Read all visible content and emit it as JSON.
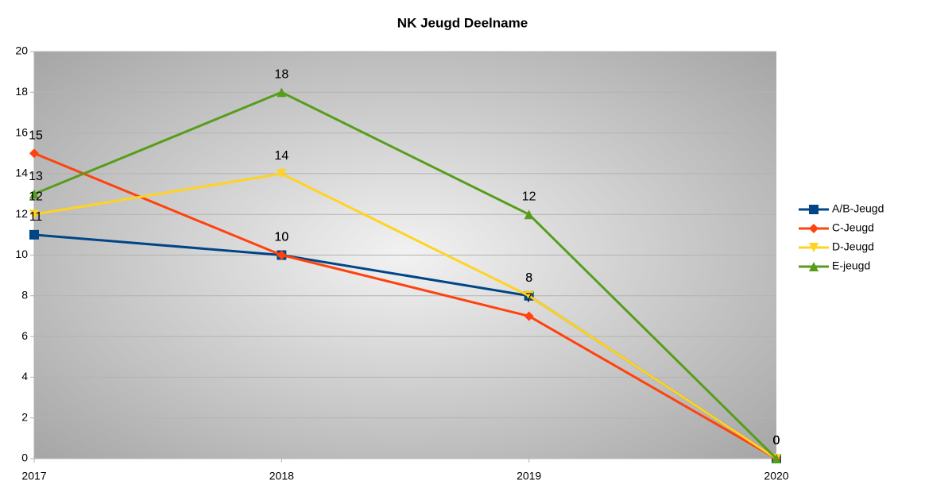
{
  "chart_data": {
    "type": "line",
    "title": "NK Jeugd Deelname",
    "categories": [
      "2017",
      "2018",
      "2019",
      "2020"
    ],
    "series": [
      {
        "name": "A/B-Jeugd",
        "color": "#004586",
        "marker": "square",
        "values": [
          11,
          10,
          8,
          0
        ]
      },
      {
        "name": "C-Jeugd",
        "color": "#ff420e",
        "marker": "diamond",
        "values": [
          15,
          10,
          7,
          0
        ]
      },
      {
        "name": "D-Jeugd",
        "color": "#ffd320",
        "marker": "triangle-down",
        "values": [
          12,
          14,
          8,
          0
        ]
      },
      {
        "name": "E-jeugd",
        "color": "#579d1c",
        "marker": "triangle-up",
        "values": [
          13,
          18,
          12,
          0
        ]
      }
    ],
    "ylim": [
      0,
      20
    ],
    "yticks": [
      0,
      2,
      4,
      6,
      8,
      10,
      12,
      14,
      16,
      18,
      20
    ],
    "grid": true,
    "legend": "right"
  }
}
